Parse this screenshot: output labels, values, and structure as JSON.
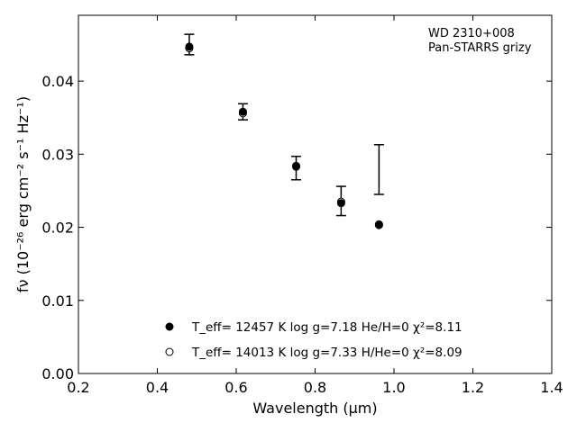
{
  "chart_data": {
    "type": "scatter",
    "title": "",
    "xlabel": "Wavelength (μm)",
    "ylabel": "fν (10⁻²⁶ erg cm⁻² s⁻¹ Hz⁻¹)",
    "xlim": [
      0.2,
      1.4
    ],
    "ylim": [
      0.0,
      0.049
    ],
    "xticks": [
      0.2,
      0.4,
      0.6,
      0.8,
      1.0,
      1.2,
      1.4
    ],
    "xtick_labels": [
      "0.2",
      "0.4",
      "0.6",
      "0.8",
      "1.0",
      "1.2",
      "1.4"
    ],
    "yticks": [
      0.0,
      0.01,
      0.02,
      0.03,
      0.04
    ],
    "ytick_labels": [
      "0.00",
      "0.01",
      "0.02",
      "0.03",
      "0.04"
    ],
    "grid": false,
    "annotation": [
      "WD 2310+008",
      "Pan-STARRS grizy"
    ],
    "annotation_placement": "top-right",
    "legend_placement": "lower-center",
    "observed": {
      "x": [
        0.481,
        0.617,
        0.752,
        0.866,
        0.962
      ],
      "y": [
        0.045,
        0.0358,
        0.0281,
        0.0236,
        0.0279
      ],
      "yerr": [
        0.0014,
        0.0011,
        0.0016,
        0.002,
        0.0034
      ]
    },
    "series": [
      {
        "name": "T_eff= 12457 K  log g=7.18  He/H=0  χ²=8.11",
        "marker": "filled-circle",
        "x": [
          0.481,
          0.617,
          0.752,
          0.866,
          0.962
        ],
        "y": [
          0.0447,
          0.0358,
          0.0284,
          0.0233,
          0.0204
        ]
      },
      {
        "name": "T_eff= 14013 K  log g=7.33  H/He=0  χ²=8.09",
        "marker": "open-circle",
        "x": [
          0.481,
          0.617,
          0.752,
          0.866,
          0.962
        ],
        "y": [
          0.0445,
          0.0356,
          0.0283,
          0.0235,
          0.0203
        ]
      }
    ]
  }
}
